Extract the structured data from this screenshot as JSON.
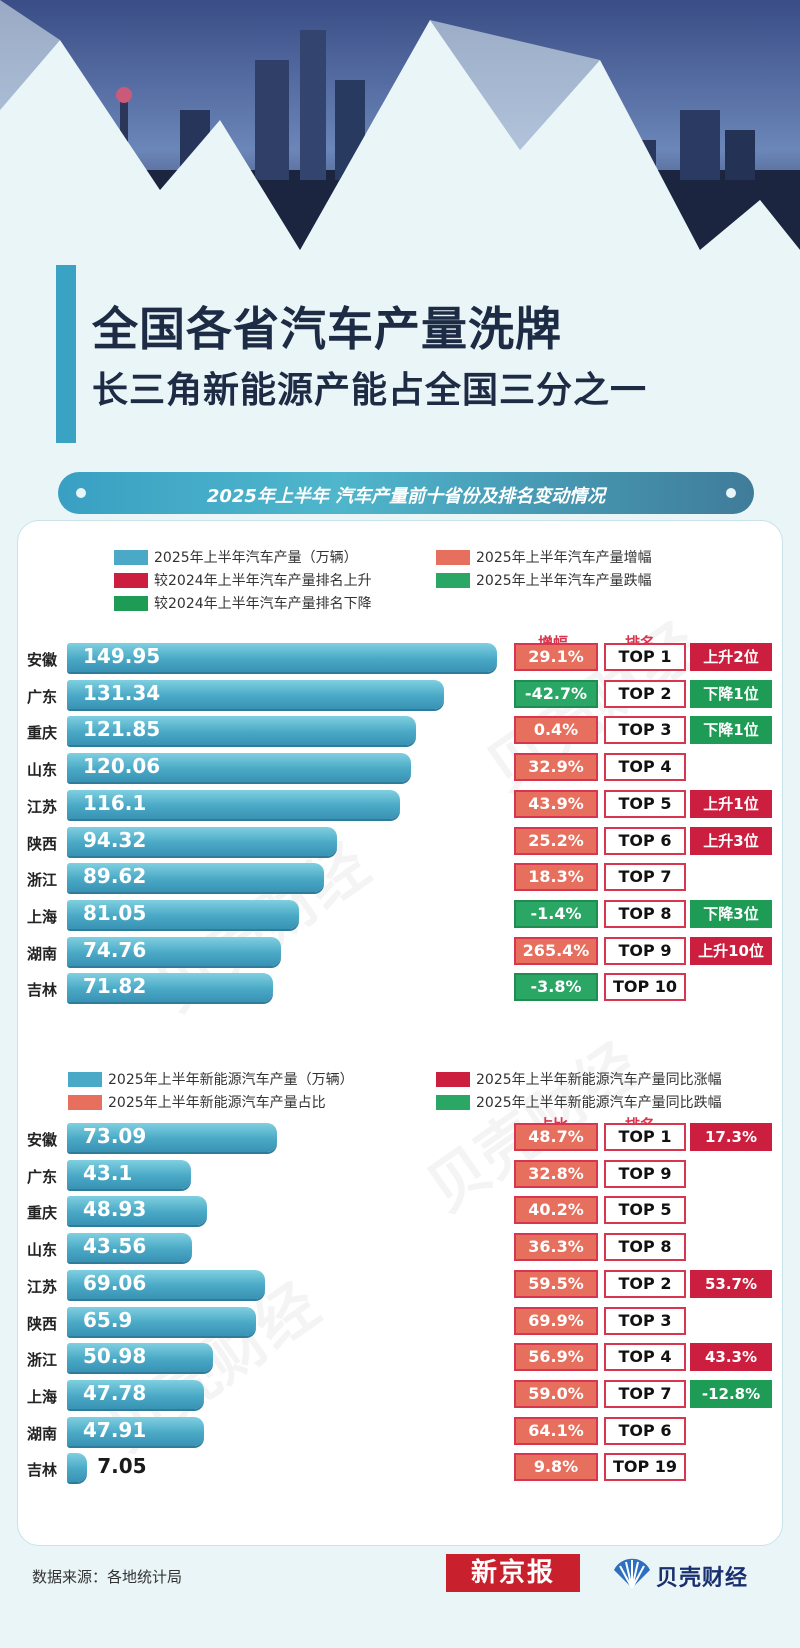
{
  "header": {
    "title_line1": "全国各省汽车产量洗牌",
    "title_line2": "长三角新能源产能占全国三分之一",
    "section_title": "2025年上半年 汽车产量前十省份及排名变动情况"
  },
  "colors": {
    "bar": "#4aa9c6",
    "pct_up": "#e76f5e",
    "pct_down": "#2aa665",
    "rank_up": "#cc1f3f",
    "rank_down": "#1e9c55",
    "title_bar": "#3aa3c4"
  },
  "chart_data": [
    {
      "type": "bar",
      "legend": {
        "production": "2025年上半年汽车产量（万辆）",
        "growth": "2025年上半年汽车产量增幅",
        "rank_up": "较2024年上半年汽车产量排名上升",
        "decline": "2025年上半年汽车产量跌幅",
        "rank_down": "较2024年上半年汽车产量排名下降"
      },
      "col_headers": {
        "pct": "增幅",
        "rank": "排名"
      },
      "xlim": [
        0,
        149.95
      ],
      "rows": [
        {
          "province": "安徽",
          "value": 149.95,
          "value_label": "149.95",
          "pct": "29.1%",
          "pct_neg": false,
          "rank": "TOP 1",
          "change": "上升2位",
          "change_dir": "up"
        },
        {
          "province": "广东",
          "value": 131.34,
          "value_label": "131.34",
          "pct": "-42.7%",
          "pct_neg": true,
          "rank": "TOP 2",
          "change": "下降1位",
          "change_dir": "down"
        },
        {
          "province": "重庆",
          "value": 121.85,
          "value_label": "121.85",
          "pct": "0.4%",
          "pct_neg": false,
          "rank": "TOP 3",
          "change": "下降1位",
          "change_dir": "down"
        },
        {
          "province": "山东",
          "value": 120.06,
          "value_label": "120.06",
          "pct": "32.9%",
          "pct_neg": false,
          "rank": "TOP 4",
          "change": "",
          "change_dir": ""
        },
        {
          "province": "江苏",
          "value": 116.1,
          "value_label": "116.1",
          "pct": "43.9%",
          "pct_neg": false,
          "rank": "TOP 5",
          "change": "上升1位",
          "change_dir": "up"
        },
        {
          "province": "陕西",
          "value": 94.32,
          "value_label": "94.32",
          "pct": "25.2%",
          "pct_neg": false,
          "rank": "TOP 6",
          "change": "上升3位",
          "change_dir": "up"
        },
        {
          "province": "浙江",
          "value": 89.62,
          "value_label": "89.62",
          "pct": "18.3%",
          "pct_neg": false,
          "rank": "TOP 7",
          "change": "",
          "change_dir": ""
        },
        {
          "province": "上海",
          "value": 81.05,
          "value_label": "81.05",
          "pct": "-1.4%",
          "pct_neg": true,
          "rank": "TOP 8",
          "change": "下降3位",
          "change_dir": "down"
        },
        {
          "province": "湖南",
          "value": 74.76,
          "value_label": "74.76",
          "pct": "265.4%",
          "pct_neg": false,
          "rank": "TOP 9",
          "change": "上升10位",
          "change_dir": "up"
        },
        {
          "province": "吉林",
          "value": 71.82,
          "value_label": "71.82",
          "pct": "-3.8%",
          "pct_neg": true,
          "rank": "TOP 10",
          "change": "",
          "change_dir": ""
        }
      ]
    },
    {
      "type": "bar",
      "legend": {
        "production": "2025年上半年新能源汽车产量（万辆）",
        "share": "2025年上半年新能源汽车产量占比",
        "yoy_up": "2025年上半年新能源汽车产量同比涨幅",
        "yoy_down": "2025年上半年新能源汽车产量同比跌幅"
      },
      "col_headers": {
        "pct": "占比",
        "rank": "排名"
      },
      "xlim": [
        0,
        149.95
      ],
      "rows": [
        {
          "province": "安徽",
          "value": 73.09,
          "value_label": "73.09",
          "pct": "48.7%",
          "pct_neg": false,
          "rank": "TOP 1",
          "change": "17.3%",
          "change_dir": "up"
        },
        {
          "province": "广东",
          "value": 43.1,
          "value_label": "43.1",
          "pct": "32.8%",
          "pct_neg": false,
          "rank": "TOP 9",
          "change": "",
          "change_dir": ""
        },
        {
          "province": "重庆",
          "value": 48.93,
          "value_label": "48.93",
          "pct": "40.2%",
          "pct_neg": false,
          "rank": "TOP 5",
          "change": "",
          "change_dir": ""
        },
        {
          "province": "山东",
          "value": 43.56,
          "value_label": "43.56",
          "pct": "36.3%",
          "pct_neg": false,
          "rank": "TOP 8",
          "change": "",
          "change_dir": ""
        },
        {
          "province": "江苏",
          "value": 69.06,
          "value_label": "69.06",
          "pct": "59.5%",
          "pct_neg": false,
          "rank": "TOP 2",
          "change": "53.7%",
          "change_dir": "up"
        },
        {
          "province": "陕西",
          "value": 65.9,
          "value_label": "65.9",
          "pct": "69.9%",
          "pct_neg": false,
          "rank": "TOP 3",
          "change": "",
          "change_dir": ""
        },
        {
          "province": "浙江",
          "value": 50.98,
          "value_label": "50.98",
          "pct": "56.9%",
          "pct_neg": false,
          "rank": "TOP 4",
          "change": "43.3%",
          "change_dir": "up"
        },
        {
          "province": "上海",
          "value": 47.78,
          "value_label": "47.78",
          "pct": "59.0%",
          "pct_neg": false,
          "rank": "TOP 7",
          "change": "-12.8%",
          "change_dir": "down"
        },
        {
          "province": "湖南",
          "value": 47.91,
          "value_label": "47.91",
          "pct": "64.1%",
          "pct_neg": false,
          "rank": "TOP 6",
          "change": "",
          "change_dir": ""
        },
        {
          "province": "吉林",
          "value": 7.05,
          "value_label": "7.05",
          "pct": "9.8%",
          "pct_neg": false,
          "rank": "TOP 19",
          "change": "",
          "change_dir": ""
        }
      ]
    }
  ],
  "watermark": "贝壳财经",
  "footer": {
    "source": "数据来源：各地统计局",
    "logo1": "新京报",
    "logo2": "贝壳财经"
  }
}
